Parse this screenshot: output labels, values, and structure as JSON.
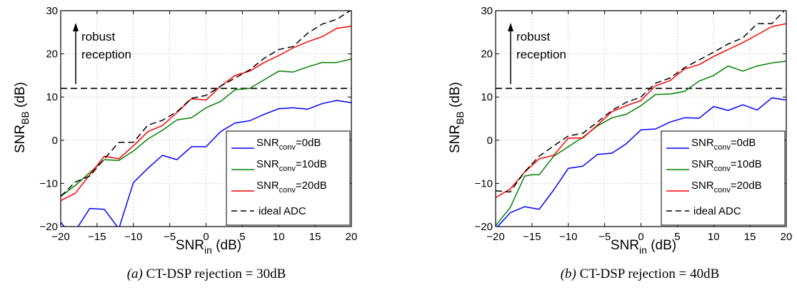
{
  "chart_data": [
    {
      "type": "line",
      "caption_label": "(a)",
      "caption_text": "CT-DSP rejection = 30dB",
      "xlabel_main": "SNR",
      "xlabel_sub": "in",
      "xlabel_unit": " (dB)",
      "ylabel_main": "SNR",
      "ylabel_sub": "BB",
      "ylabel_unit": " (dB)",
      "xlim": [
        -20,
        20
      ],
      "ylim": [
        -20,
        30
      ],
      "xticks": [
        -20,
        -15,
        -10,
        -5,
        0,
        5,
        10,
        15,
        20
      ],
      "yticks": [
        -20,
        -10,
        0,
        10,
        20,
        30
      ],
      "tick_labels_x": [
        "−20",
        "−15",
        "−10",
        "−5",
        "0",
        "5",
        "10",
        "15",
        "20"
      ],
      "tick_labels_y": [
        "−20",
        "−10",
        "0",
        "10",
        "20",
        "30"
      ],
      "grid": true,
      "annotation": {
        "line1": "robust",
        "line2": "reception",
        "threshold_y": 12
      },
      "legend_position": "bottom-right",
      "series": [
        {
          "name_main": "SNR",
          "name_sub": "conv",
          "name_tail": "=0dB",
          "color": "#0000ff",
          "dash": "solid",
          "x": [
            -20,
            -19,
            -18,
            -16,
            -14,
            -12,
            -10,
            -8,
            -6,
            -4,
            -2,
            0,
            2,
            4,
            6,
            8,
            10,
            12,
            14,
            16,
            18,
            20
          ],
          "y": [
            -19,
            -21,
            -21,
            -15.8,
            -16,
            -20.5,
            -9.8,
            -6.5,
            -3.5,
            -4.5,
            -1.5,
            -1.5,
            2,
            4,
            4.5,
            6,
            7.3,
            7.5,
            7.2,
            8.5,
            9.2,
            8.7
          ]
        },
        {
          "name_main": "SNR",
          "name_sub": "conv",
          "name_tail": "=10dB",
          "color": "#008000",
          "dash": "solid",
          "x": [
            -20,
            -18,
            -16,
            -14,
            -12,
            -10,
            -8,
            -6,
            -4,
            -2,
            0,
            2,
            4,
            6,
            8,
            10,
            12,
            14,
            16,
            18,
            20
          ],
          "y": [
            -13,
            -10.5,
            -7.5,
            -4.5,
            -4.7,
            -2.5,
            0.3,
            2.3,
            4.7,
            5.2,
            7.5,
            9,
            11.7,
            12,
            14,
            16,
            15.8,
            17,
            18,
            18,
            18.8
          ]
        },
        {
          "name_main": "SNR",
          "name_sub": "conv",
          "name_tail": "=20dB",
          "color": "#ff0000",
          "dash": "solid",
          "x": [
            -20,
            -18,
            -16,
            -14,
            -12,
            -10,
            -8,
            -6,
            -4,
            -2,
            0,
            2,
            4,
            6,
            8,
            10,
            12,
            14,
            16,
            18,
            20
          ],
          "y": [
            -14,
            -12.3,
            -8,
            -3.7,
            -4.3,
            -1.3,
            2,
            3.4,
            6.4,
            9.6,
            9.3,
            12.5,
            15,
            16,
            18,
            19.6,
            21.4,
            22.8,
            24,
            25.9,
            26.4
          ]
        },
        {
          "name_main": "ideal ADC",
          "name_sub": "",
          "name_tail": "",
          "color": "#000000",
          "dash": "dashed",
          "x": [
            -20,
            -18,
            -16,
            -14,
            -12,
            -10,
            -8,
            -6,
            -4,
            -2,
            0,
            2,
            4,
            6,
            8,
            10,
            12,
            14,
            16,
            18,
            20
          ],
          "y": [
            -13,
            -9.7,
            -8.3,
            -4.3,
            -0.5,
            -0.5,
            3.5,
            4.6,
            6.6,
            9.7,
            10.4,
            12.5,
            14.4,
            16.3,
            19,
            21,
            21.7,
            24.8,
            26.9,
            28,
            30.2
          ]
        }
      ]
    },
    {
      "type": "line",
      "caption_label": "(b)",
      "caption_text": "CT-DSP rejection = 40dB",
      "xlabel_main": "SNR",
      "xlabel_sub": "in",
      "xlabel_unit": " (dB)",
      "ylabel_main": "SNR",
      "ylabel_sub": "BB",
      "ylabel_unit": " (dB)",
      "xlim": [
        -20,
        20
      ],
      "ylim": [
        -20,
        30
      ],
      "xticks": [
        -20,
        -15,
        -10,
        -5,
        0,
        5,
        10,
        15,
        20
      ],
      "yticks": [
        -20,
        -10,
        0,
        10,
        20,
        30
      ],
      "tick_labels_x": [
        "−20",
        "−15",
        "−10",
        "−5",
        "0",
        "5",
        "10",
        "15",
        "20"
      ],
      "tick_labels_y": [
        "−20",
        "−10",
        "0",
        "10",
        "20",
        "30"
      ],
      "grid": true,
      "annotation": {
        "line1": "robust",
        "line2": "reception",
        "threshold_y": 12
      },
      "legend_position": "bottom-right",
      "series": [
        {
          "name_main": "SNR",
          "name_sub": "conv",
          "name_tail": "=0dB",
          "color": "#0000ff",
          "dash": "solid",
          "x": [
            -20,
            -18,
            -16,
            -14,
            -12,
            -10,
            -8,
            -6,
            -4,
            -2,
            0,
            2,
            4,
            6,
            8,
            10,
            12,
            14,
            16,
            18,
            20
          ],
          "y": [
            -20.5,
            -16.8,
            -15.4,
            -16,
            -11.5,
            -6.5,
            -6,
            -3.3,
            -3,
            -0.8,
            2.4,
            2.6,
            4.2,
            5.2,
            5.1,
            7.8,
            6.9,
            8.2,
            7,
            9.8,
            9.3
          ]
        },
        {
          "name_main": "SNR",
          "name_sub": "conv",
          "name_tail": "=10dB",
          "color": "#008000",
          "dash": "solid",
          "x": [
            -20,
            -18,
            -16,
            -15,
            -14,
            -12,
            -10,
            -8,
            -6,
            -4,
            -2,
            0,
            2,
            4,
            6,
            8,
            10,
            12,
            14,
            16,
            18,
            20
          ],
          "y": [
            -19.8,
            -15.6,
            -8.3,
            -8,
            -8,
            -3.7,
            -1.5,
            0.7,
            3.3,
            5.2,
            6,
            8,
            10.6,
            10.7,
            11.3,
            13.7,
            15,
            17.2,
            16,
            17.2,
            17.9,
            18.3
          ]
        },
        {
          "name_main": "SNR",
          "name_sub": "conv",
          "name_tail": "=20dB",
          "color": "#ff0000",
          "dash": "solid",
          "x": [
            -20,
            -18,
            -16,
            -14,
            -12,
            -10,
            -8,
            -6,
            -4,
            -2,
            0,
            2,
            4,
            6,
            8,
            10,
            12,
            14,
            16,
            18,
            20
          ],
          "y": [
            -13.3,
            -11.3,
            -7.4,
            -4.3,
            -3.5,
            0.5,
            0.5,
            3.5,
            6.6,
            8,
            9.2,
            12.6,
            13.8,
            16.5,
            17.5,
            19.4,
            21,
            22.6,
            24.4,
            26.3,
            27
          ]
        },
        {
          "name_main": "ideal ADC",
          "name_sub": "",
          "name_tail": "",
          "color": "#000000",
          "dash": "dashed",
          "x": [
            -20,
            -18,
            -16,
            -14,
            -12,
            -10,
            -8,
            -6,
            -4,
            -2,
            0,
            2,
            4,
            6,
            8,
            10,
            12,
            14,
            16,
            18,
            20
          ],
          "y": [
            -11.7,
            -12,
            -7.3,
            -3.7,
            -1.3,
            1,
            1.6,
            4.2,
            6.9,
            8.8,
            10,
            13.2,
            14.4,
            16.8,
            18.6,
            20.4,
            22.3,
            23.7,
            27,
            27,
            30.5
          ]
        }
      ]
    }
  ]
}
